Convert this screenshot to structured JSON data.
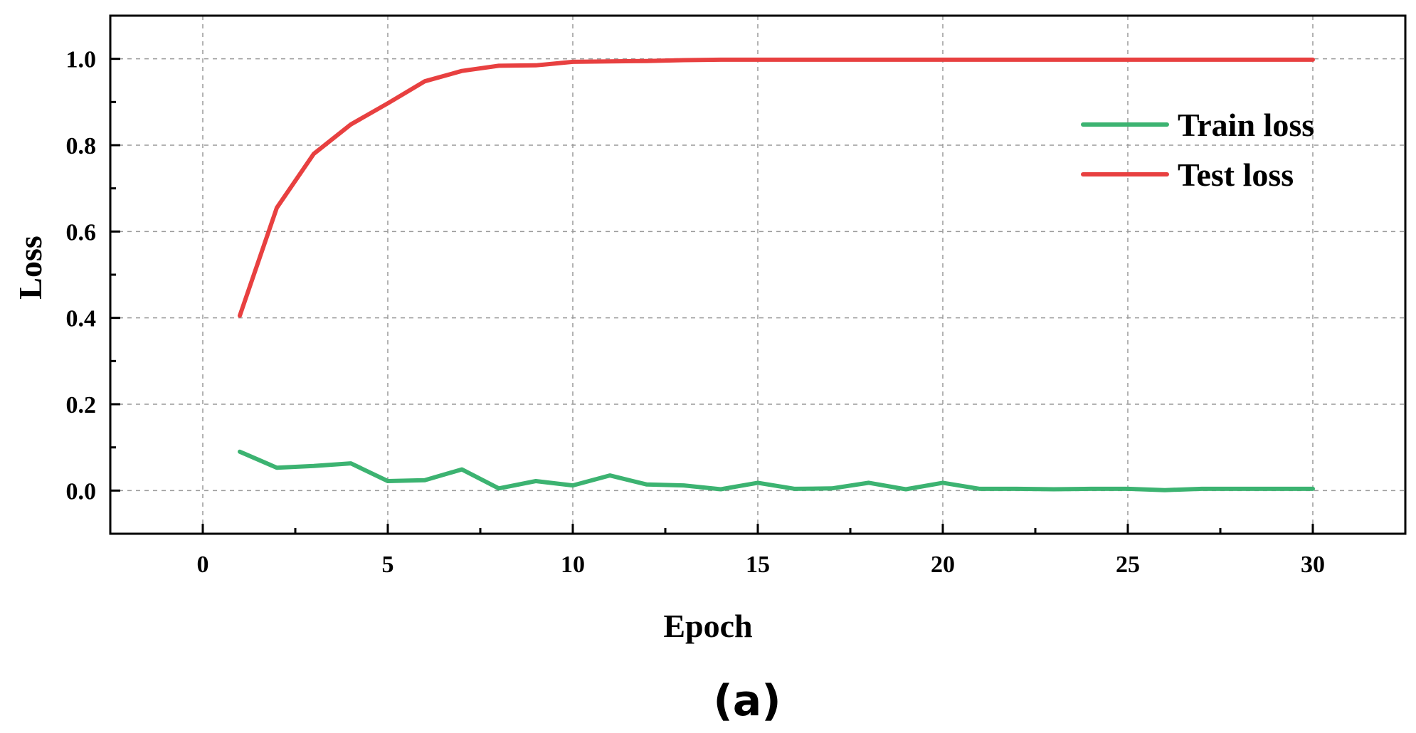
{
  "chart_data": {
    "type": "line",
    "title": "",
    "xlabel": "Epoch",
    "ylabel": "Loss",
    "xlim": [
      -2.5,
      32.5
    ],
    "ylim": [
      -0.1,
      1.1
    ],
    "xticks": [
      0,
      5,
      10,
      15,
      20,
      25,
      30
    ],
    "xtick_labels": [
      "0",
      "5",
      "10",
      "15",
      "20",
      "25",
      "30"
    ],
    "yticks": [
      0.0,
      0.2,
      0.4,
      0.6,
      0.8,
      1.0
    ],
    "ytick_labels": [
      "0.0",
      "0.2",
      "0.4",
      "0.6",
      "0.8",
      "1.0"
    ],
    "grid": true,
    "legend_position": "top-right",
    "x": [
      1,
      2,
      3,
      4,
      5,
      6,
      7,
      8,
      9,
      10,
      11,
      12,
      13,
      14,
      15,
      16,
      17,
      18,
      19,
      20,
      21,
      22,
      23,
      24,
      25,
      26,
      27,
      28,
      29,
      30
    ],
    "series": [
      {
        "name": "Train loss",
        "color": "#3cb371",
        "values": [
          0.09,
          0.053,
          0.057,
          0.063,
          0.022,
          0.024,
          0.049,
          0.005,
          0.022,
          0.012,
          0.035,
          0.014,
          0.012,
          0.003,
          0.018,
          0.004,
          0.005,
          0.018,
          0.003,
          0.018,
          0.004,
          0.004,
          0.003,
          0.004,
          0.004,
          0.001,
          0.004,
          0.004,
          0.004,
          0.004
        ]
      },
      {
        "name": "Test loss",
        "color": "#e84040",
        "values": [
          0.405,
          0.655,
          0.78,
          0.848,
          0.897,
          0.948,
          0.972,
          0.984,
          0.985,
          0.993,
          0.994,
          0.995,
          0.997,
          0.998,
          0.998,
          0.998,
          0.998,
          0.998,
          0.998,
          0.998,
          0.998,
          0.998,
          0.998,
          0.998,
          0.998,
          0.998,
          0.998,
          0.998,
          0.998,
          0.998
        ]
      }
    ]
  },
  "caption": "(a)"
}
